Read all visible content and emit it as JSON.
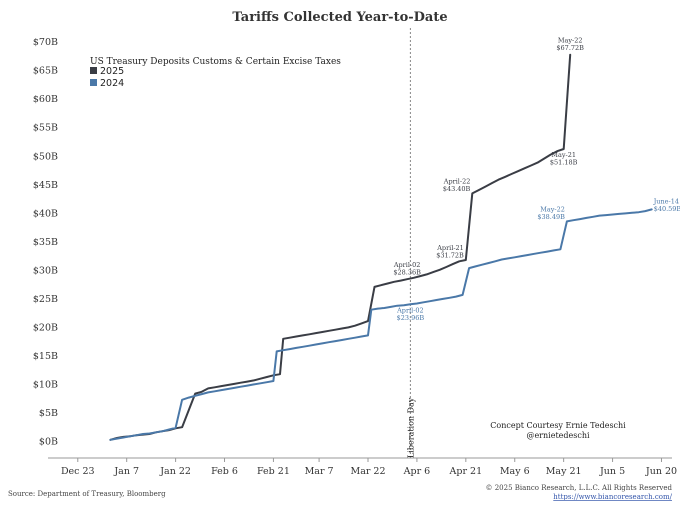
{
  "chart_data": {
    "type": "line",
    "title": "Tariffs Collected Year-to-Date",
    "xlabel": "",
    "ylabel": "",
    "y_ticks": [
      "$0B",
      "$5B",
      "$10B",
      "$15B",
      "$20B",
      "$25B",
      "$30B",
      "$35B",
      "$40B",
      "$45B",
      "$50B",
      "$55B",
      "$60B",
      "$65B",
      "$70B"
    ],
    "ylim": [
      -3,
      71
    ],
    "x_ticks": [
      {
        "label": "Dec 23",
        "day": -9
      },
      {
        "label": "Jan 7",
        "day": 6
      },
      {
        "label": "Jan 22",
        "day": 21
      },
      {
        "label": "Feb 6",
        "day": 36
      },
      {
        "label": "Feb 21",
        "day": 51
      },
      {
        "label": "Mar 7",
        "day": 65
      },
      {
        "label": "Mar 22",
        "day": 80
      },
      {
        "label": "Apr 6",
        "day": 95
      },
      {
        "label": "Apr 21",
        "day": 110
      },
      {
        "label": "May 6",
        "day": 125
      },
      {
        "label": "May 21",
        "day": 140
      },
      {
        "label": "Jun 5",
        "day": 155
      },
      {
        "label": "Jun 20",
        "day": 170
      }
    ],
    "xlim": [
      -12,
      172
    ],
    "grid": false,
    "legend": {
      "title": "US Treasury Deposits Customs & Certain Excise Taxes",
      "position": "top-left"
    },
    "series": [
      {
        "name": "2025",
        "color": "#3a3d45",
        "points": [
          [
            1,
            0.2
          ],
          [
            3,
            0.5
          ],
          [
            5,
            0.7
          ],
          [
            7,
            0.8
          ],
          [
            9,
            1.0
          ],
          [
            11,
            1.1
          ],
          [
            13,
            1.2
          ],
          [
            15,
            1.5
          ],
          [
            17,
            1.7
          ],
          [
            19,
            1.9
          ],
          [
            21,
            2.2
          ],
          [
            23,
            2.4
          ],
          [
            27,
            8.3
          ],
          [
            29,
            8.6
          ],
          [
            31,
            9.2
          ],
          [
            33,
            9.4
          ],
          [
            35,
            9.6
          ],
          [
            37,
            9.8
          ],
          [
            39,
            10.0
          ],
          [
            41,
            10.2
          ],
          [
            43,
            10.4
          ],
          [
            45,
            10.6
          ],
          [
            47,
            10.9
          ],
          [
            49,
            11.2
          ],
          [
            51,
            11.5
          ],
          [
            53,
            11.7
          ],
          [
            54,
            17.9
          ],
          [
            56,
            18.1
          ],
          [
            58,
            18.3
          ],
          [
            60,
            18.5
          ],
          [
            62,
            18.7
          ],
          [
            64,
            18.9
          ],
          [
            66,
            19.1
          ],
          [
            68,
            19.3
          ],
          [
            70,
            19.5
          ],
          [
            72,
            19.7
          ],
          [
            74,
            19.9
          ],
          [
            76,
            20.2
          ],
          [
            78,
            20.6
          ],
          [
            80,
            21.0
          ],
          [
            82,
            27.0
          ],
          [
            84,
            27.3
          ],
          [
            86,
            27.6
          ],
          [
            88,
            27.9
          ],
          [
            90,
            28.1
          ],
          [
            92,
            28.36
          ],
          [
            94,
            28.6
          ],
          [
            96,
            28.9
          ],
          [
            98,
            29.2
          ],
          [
            100,
            29.6
          ],
          [
            102,
            30.0
          ],
          [
            104,
            30.5
          ],
          [
            106,
            31.0
          ],
          [
            108,
            31.5
          ],
          [
            110,
            31.72
          ],
          [
            112,
            43.4
          ],
          [
            114,
            44.0
          ],
          [
            116,
            44.6
          ],
          [
            118,
            45.2
          ],
          [
            120,
            45.8
          ],
          [
            122,
            46.3
          ],
          [
            124,
            46.8
          ],
          [
            126,
            47.3
          ],
          [
            128,
            47.8
          ],
          [
            130,
            48.3
          ],
          [
            132,
            48.8
          ],
          [
            134,
            49.5
          ],
          [
            136,
            50.2
          ],
          [
            138,
            50.8
          ],
          [
            140,
            51.18
          ],
          [
            142,
            67.72
          ]
        ]
      },
      {
        "name": "2024",
        "color": "#4a78a8",
        "points": [
          [
            1,
            0.2
          ],
          [
            3,
            0.4
          ],
          [
            5,
            0.6
          ],
          [
            7,
            0.8
          ],
          [
            9,
            1.0
          ],
          [
            11,
            1.2
          ],
          [
            13,
            1.3
          ],
          [
            15,
            1.5
          ],
          [
            17,
            1.7
          ],
          [
            19,
            2.0
          ],
          [
            21,
            2.3
          ],
          [
            23,
            7.2
          ],
          [
            25,
            7.6
          ],
          [
            27,
            7.9
          ],
          [
            29,
            8.2
          ],
          [
            31,
            8.5
          ],
          [
            33,
            8.7
          ],
          [
            35,
            8.9
          ],
          [
            37,
            9.1
          ],
          [
            39,
            9.3
          ],
          [
            41,
            9.5
          ],
          [
            43,
            9.7
          ],
          [
            45,
            9.9
          ],
          [
            47,
            10.1
          ],
          [
            49,
            10.3
          ],
          [
            51,
            10.5
          ],
          [
            52,
            15.7
          ],
          [
            54,
            15.9
          ],
          [
            56,
            16.1
          ],
          [
            58,
            16.3
          ],
          [
            60,
            16.5
          ],
          [
            62,
            16.7
          ],
          [
            64,
            16.9
          ],
          [
            66,
            17.1
          ],
          [
            68,
            17.3
          ],
          [
            70,
            17.5
          ],
          [
            72,
            17.7
          ],
          [
            74,
            17.9
          ],
          [
            76,
            18.1
          ],
          [
            78,
            18.3
          ],
          [
            80,
            18.5
          ],
          [
            81,
            23.0
          ],
          [
            83,
            23.2
          ],
          [
            85,
            23.3
          ],
          [
            87,
            23.5
          ],
          [
            89,
            23.7
          ],
          [
            91,
            23.8
          ],
          [
            93,
            23.96
          ],
          [
            95,
            24.1
          ],
          [
            97,
            24.3
          ],
          [
            99,
            24.5
          ],
          [
            101,
            24.7
          ],
          [
            103,
            24.9
          ],
          [
            105,
            25.1
          ],
          [
            107,
            25.3
          ],
          [
            109,
            25.6
          ],
          [
            111,
            30.3
          ],
          [
            113,
            30.6
          ],
          [
            115,
            30.9
          ],
          [
            117,
            31.2
          ],
          [
            119,
            31.5
          ],
          [
            121,
            31.8
          ],
          [
            123,
            32.0
          ],
          [
            125,
            32.2
          ],
          [
            127,
            32.4
          ],
          [
            129,
            32.6
          ],
          [
            131,
            32.8
          ],
          [
            133,
            33.0
          ],
          [
            135,
            33.2
          ],
          [
            137,
            33.4
          ],
          [
            139,
            33.6
          ],
          [
            141,
            38.49
          ],
          [
            143,
            38.7
          ],
          [
            145,
            38.9
          ],
          [
            147,
            39.1
          ],
          [
            149,
            39.3
          ],
          [
            151,
            39.5
          ],
          [
            153,
            39.6
          ],
          [
            155,
            39.7
          ],
          [
            157,
            39.8
          ],
          [
            159,
            39.9
          ],
          [
            161,
            40.0
          ],
          [
            163,
            40.1
          ],
          [
            165,
            40.3
          ],
          [
            167,
            40.59
          ]
        ]
      }
    ],
    "vline": {
      "day": 93,
      "label": "Liberation Day"
    },
    "annotations": [
      {
        "series": "2025",
        "day": 142,
        "value": 67.72,
        "lines": [
          "May-22",
          "$67.72B"
        ],
        "pos": "above"
      },
      {
        "series": "2025",
        "day": 140,
        "value": 51.18,
        "lines": [
          "May-21",
          "$51.18B"
        ],
        "pos": "below"
      },
      {
        "series": "2025",
        "day": 112,
        "value": 43.4,
        "lines": [
          "April-22",
          "$43.40B"
        ],
        "pos": "left"
      },
      {
        "series": "2025",
        "day": 110,
        "value": 31.72,
        "lines": [
          "April-21",
          "$31.72B"
        ],
        "pos": "left"
      },
      {
        "series": "2025",
        "day": 92,
        "value": 28.36,
        "lines": [
          "April-02",
          "$28.36B"
        ],
        "pos": "above"
      },
      {
        "series": "2024",
        "day": 93,
        "value": 23.96,
        "lines": [
          "April-02",
          "$23.96B"
        ],
        "pos": "below"
      },
      {
        "series": "2024",
        "day": 141,
        "value": 38.49,
        "lines": [
          "May-22",
          "$38.49B"
        ],
        "pos": "left"
      },
      {
        "series": "2024",
        "day": 167,
        "value": 40.59,
        "lines": [
          "June-14",
          "$40.59B"
        ],
        "pos": "right"
      }
    ]
  },
  "credit": {
    "line1": "Concept Courtesy Ernie Tedeschi",
    "line2": "@ernietedeschi"
  },
  "footer": {
    "source": "Source: Department of Treasury, Bloomberg",
    "copyright": "© 2025 Bianco Research, L.L.C. All Rights Reserved",
    "link": "https://www.biancoresearch.com/"
  }
}
